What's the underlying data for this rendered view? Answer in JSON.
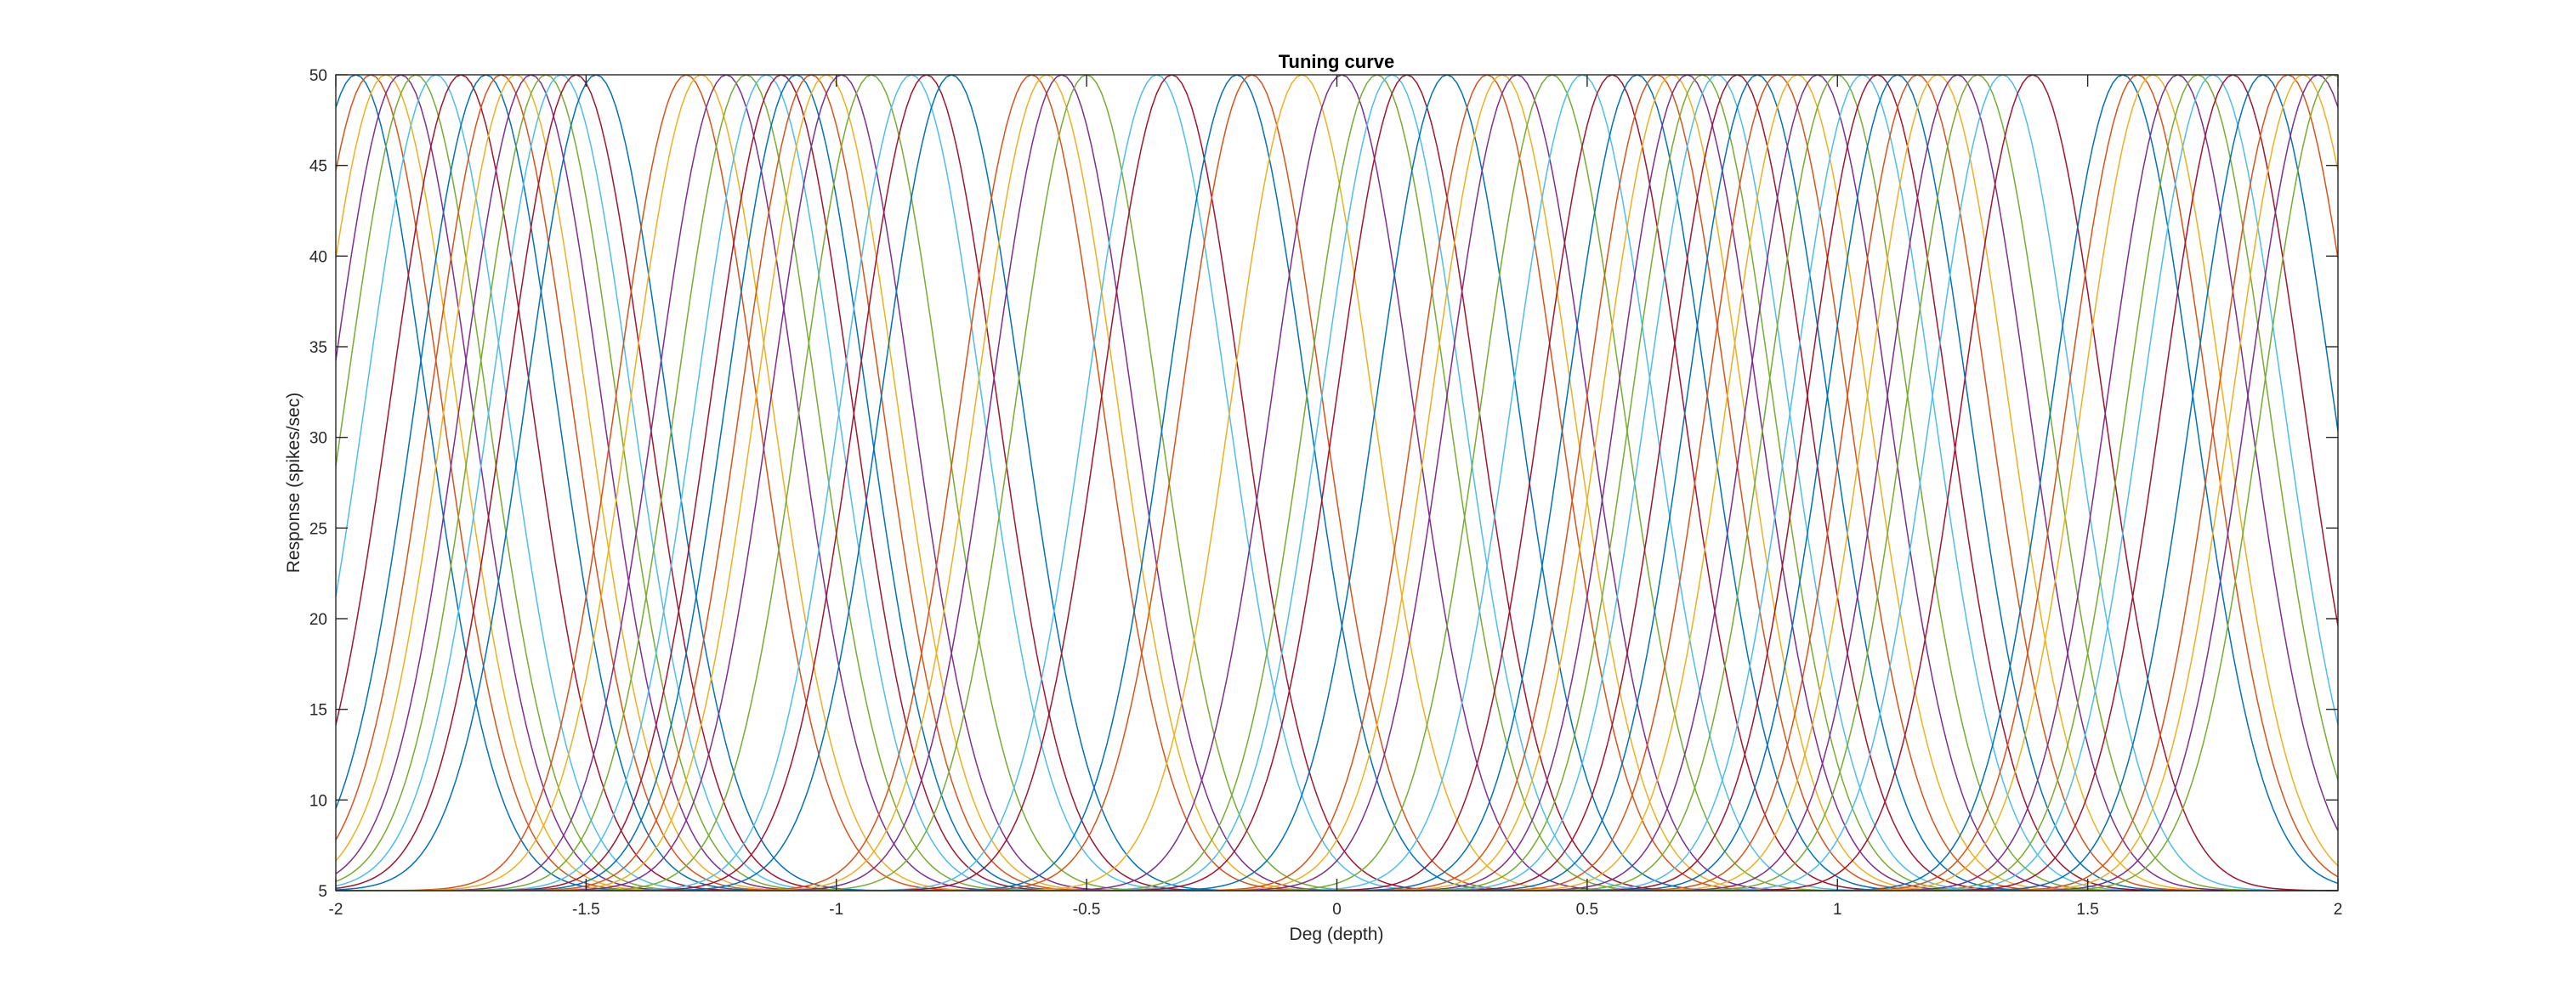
{
  "chart_data": {
    "type": "line",
    "title": "Tuning curve",
    "xlabel": "Deg (depth)",
    "ylabel": "Response (spikes/sec)",
    "xlim": [
      -2,
      2
    ],
    "ylim": [
      5,
      50
    ],
    "xticks": [
      -2,
      -1.5,
      -1,
      -0.5,
      0,
      0.5,
      1,
      1.5,
      2
    ],
    "xtick_labels": [
      "-2",
      "-1.5",
      "-1",
      "-0.5",
      "0",
      "0.5",
      "1",
      "1.5",
      "2"
    ],
    "yticks": [
      5,
      10,
      15,
      20,
      25,
      30,
      35,
      40,
      45,
      50
    ],
    "ytick_labels": [
      "5",
      "10",
      "15",
      "20",
      "25",
      "30",
      "35",
      "40",
      "45",
      "50"
    ],
    "grid": false,
    "legend": "none",
    "curve_model": "gaussian",
    "baseline": 5,
    "peak": 50,
    "sigma": 0.14,
    "x_sample_step": 0.01,
    "colors": [
      "#0072BD",
      "#D95319",
      "#EDB120",
      "#7E2F8E",
      "#77AC30",
      "#4DBEEE",
      "#A2142F"
    ],
    "series": [
      {
        "center": -1.96
      },
      {
        "center": -1.93
      },
      {
        "center": -1.9
      },
      {
        "center": -1.87
      },
      {
        "center": -1.84
      },
      {
        "center": -1.8
      },
      {
        "center": -1.75
      },
      {
        "center": -1.7
      },
      {
        "center": -1.67
      },
      {
        "center": -1.64
      },
      {
        "center": -1.61
      },
      {
        "center": -1.58
      },
      {
        "center": -1.55
      },
      {
        "center": -1.52
      },
      {
        "center": -1.48
      },
      {
        "center": -1.3
      },
      {
        "center": -1.27
      },
      {
        "center": -1.22
      },
      {
        "center": -1.18
      },
      {
        "center": -1.14
      },
      {
        "center": -1.11
      },
      {
        "center": -1.08
      },
      {
        "center": -1.05
      },
      {
        "center": -1.02
      },
      {
        "center": -0.99
      },
      {
        "center": -0.93
      },
      {
        "center": -0.85
      },
      {
        "center": -0.82
      },
      {
        "center": -0.77
      },
      {
        "center": -0.61
      },
      {
        "center": -0.58
      },
      {
        "center": -0.55
      },
      {
        "center": -0.5
      },
      {
        "center": -0.36
      },
      {
        "center": -0.33
      },
      {
        "center": -0.2
      },
      {
        "center": -0.17
      },
      {
        "center": -0.07
      },
      {
        "center": 0.01
      },
      {
        "center": 0.08
      },
      {
        "center": 0.11
      },
      {
        "center": 0.14
      },
      {
        "center": 0.22
      },
      {
        "center": 0.3
      },
      {
        "center": 0.33
      },
      {
        "center": 0.36
      },
      {
        "center": 0.43
      },
      {
        "center": 0.49
      },
      {
        "center": 0.55
      },
      {
        "center": 0.6
      },
      {
        "center": 0.64
      },
      {
        "center": 0.67
      },
      {
        "center": 0.7
      },
      {
        "center": 0.73
      },
      {
        "center": 0.76
      },
      {
        "center": 0.8
      },
      {
        "center": 0.84
      },
      {
        "center": 0.88
      },
      {
        "center": 0.92
      },
      {
        "center": 0.96
      },
      {
        "center": 1.0
      },
      {
        "center": 1.05
      },
      {
        "center": 1.08
      },
      {
        "center": 1.12
      },
      {
        "center": 1.16
      },
      {
        "center": 1.2
      },
      {
        "center": 1.24
      },
      {
        "center": 1.28
      },
      {
        "center": 1.33
      },
      {
        "center": 1.39
      },
      {
        "center": 1.57
      },
      {
        "center": 1.6
      },
      {
        "center": 1.63
      },
      {
        "center": 1.68
      },
      {
        "center": 1.72
      },
      {
        "center": 1.75
      },
      {
        "center": 1.79
      },
      {
        "center": 1.85
      },
      {
        "center": 1.9
      },
      {
        "center": 1.93
      },
      {
        "center": 1.96
      },
      {
        "center": 1.99
      }
    ]
  }
}
